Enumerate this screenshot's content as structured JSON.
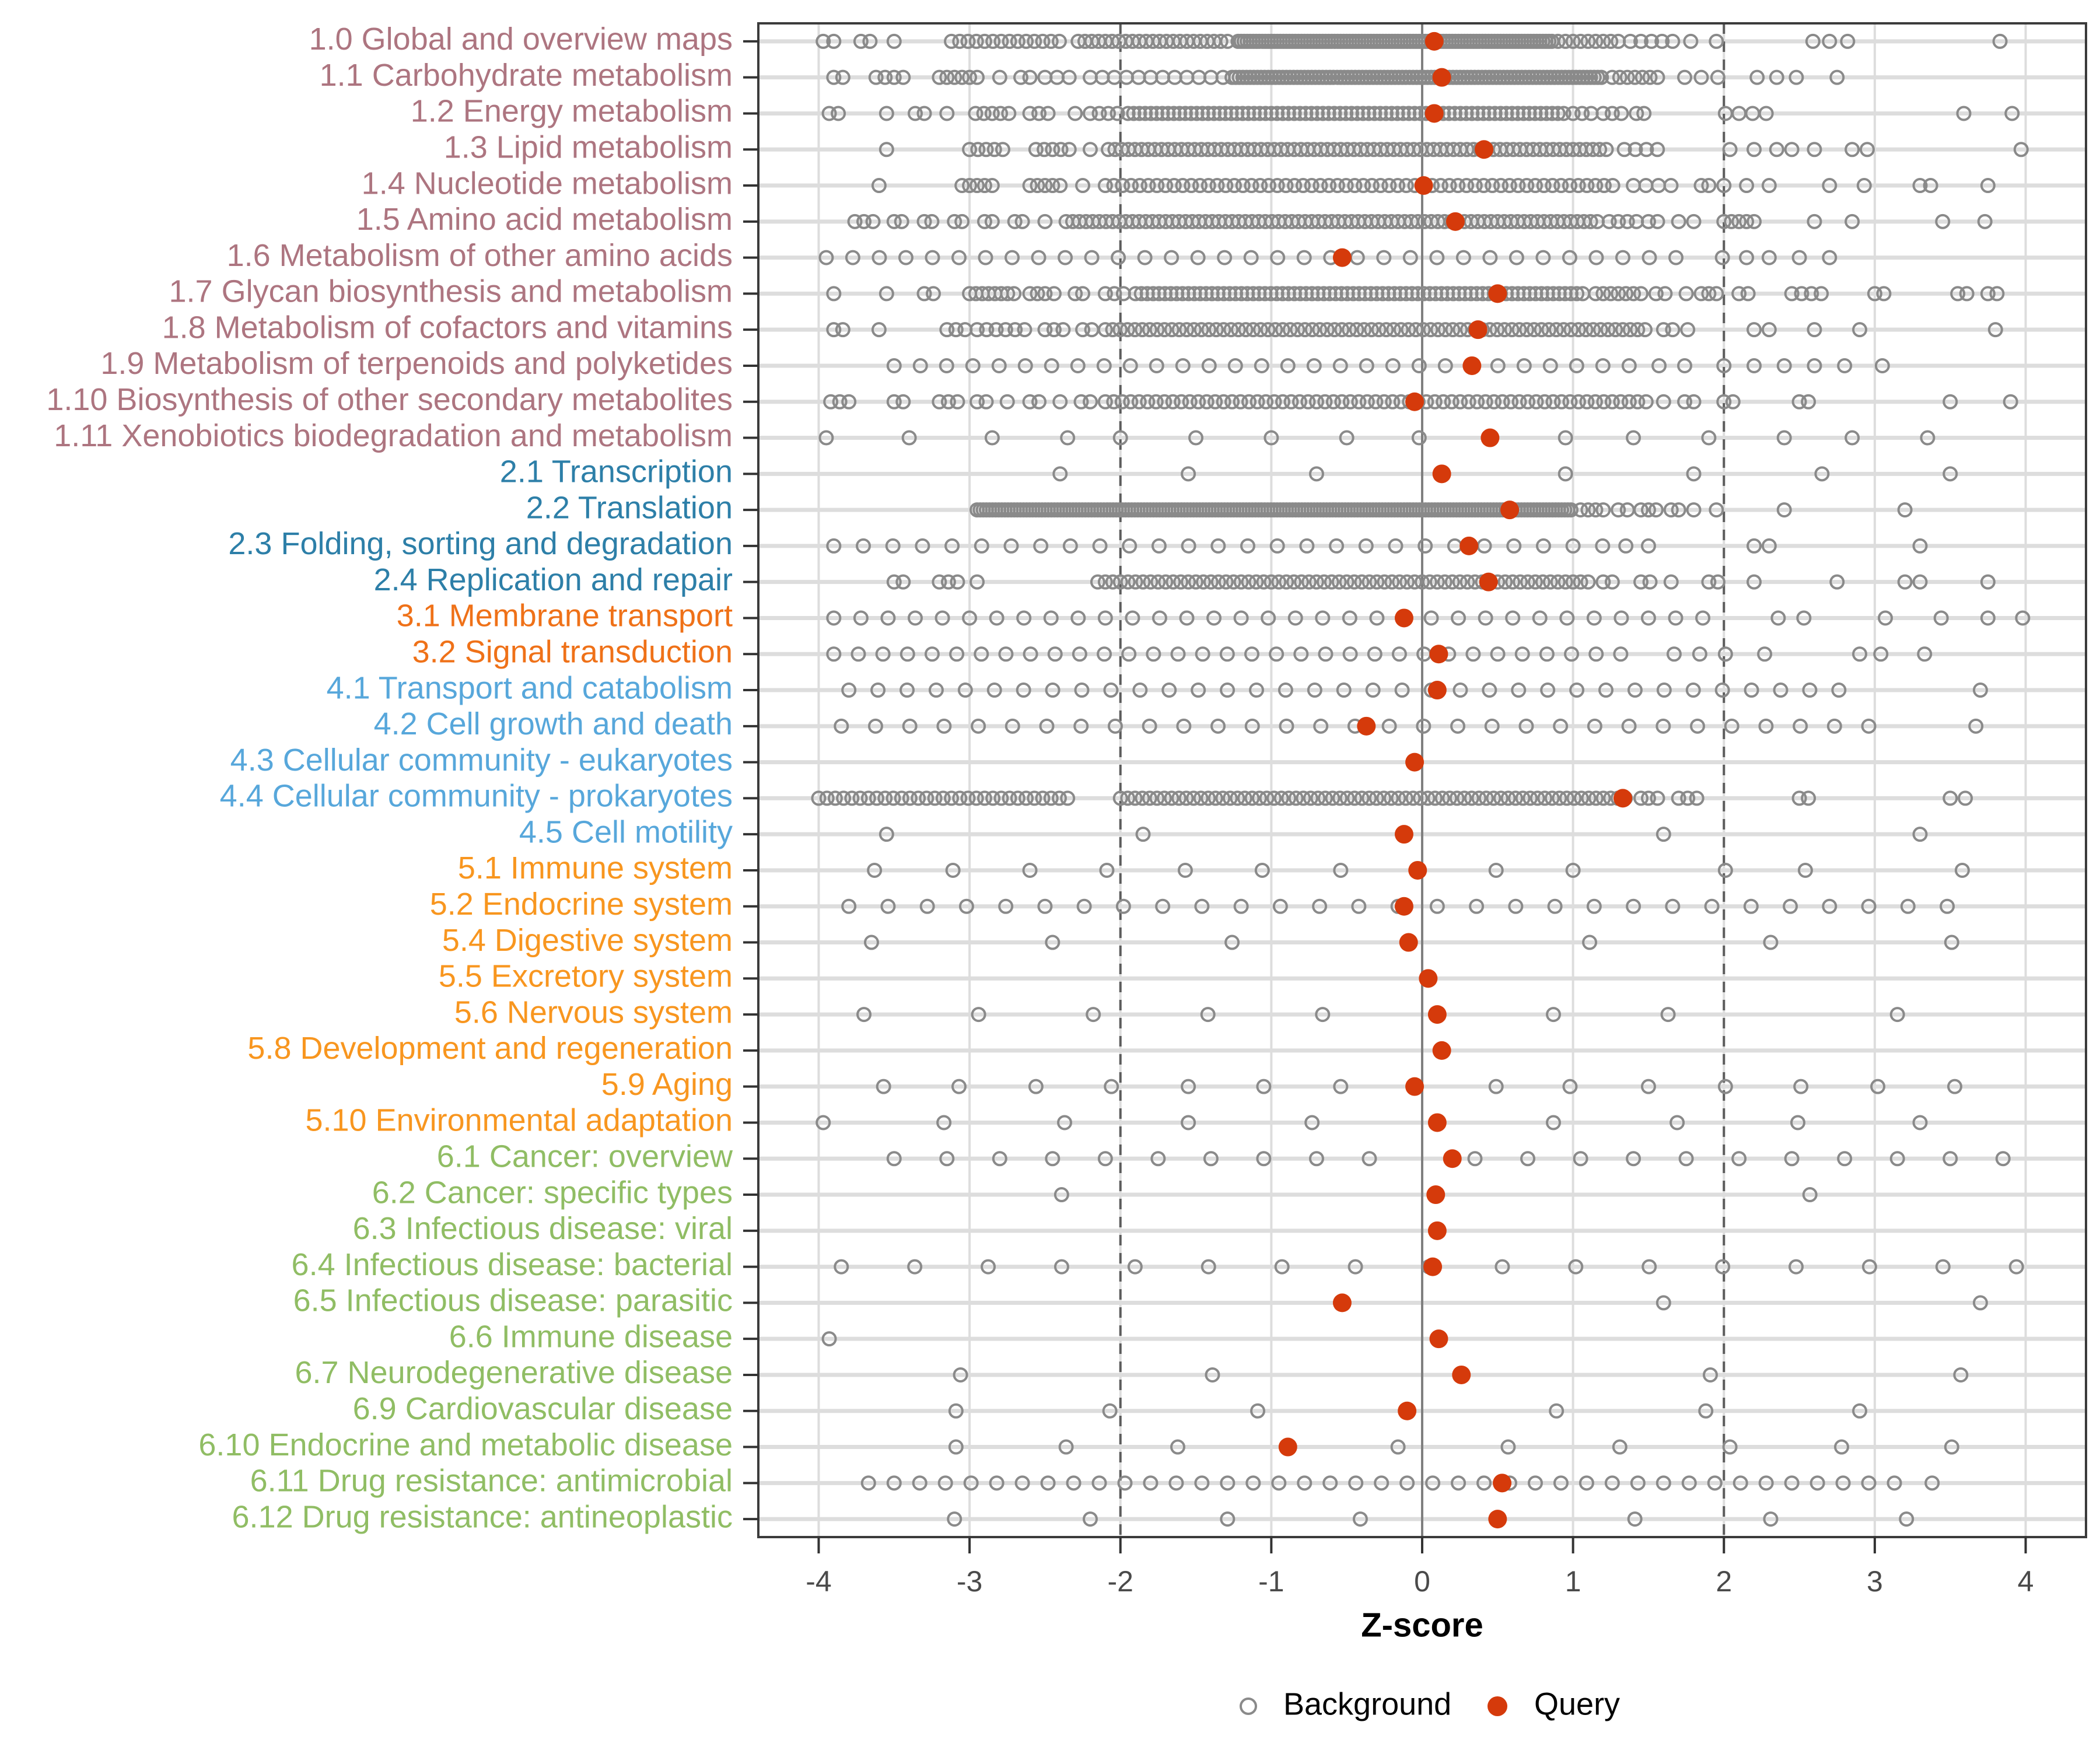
{
  "chart_data": {
    "type": "scatter",
    "title": "",
    "xlabel": "Z-score",
    "ylabel": "",
    "xlim": [
      -4.4,
      4.4
    ],
    "xticks": [
      -4,
      -3,
      -2,
      -1,
      0,
      1,
      2,
      3,
      4
    ],
    "grid": "on",
    "reference_lines": {
      "solid_at": 0,
      "dashed_at": [
        -2,
        2
      ]
    },
    "legend_position": "bottom",
    "legend": [
      {
        "label": "Background",
        "marker": "open-circle",
        "color": "#8A8A8A"
      },
      {
        "label": "Query",
        "marker": "filled-circle",
        "color": "#D53A0B"
      }
    ],
    "colors": {
      "query_dot": "#D53A0B",
      "background_circle_stroke": "#8A8A8A",
      "grid_light": "#DDDDDD",
      "zero_line": "#7F7F7F",
      "dashed_line": "#5C5C5C",
      "plot_border": "#3B3B3B",
      "tick_label": "#4A4A4A"
    },
    "group_colors": {
      "1": "#AD7580",
      "2": "#2D7FA8",
      "3": "#EF7118",
      "4": "#57A7DB",
      "5": "#F8961F",
      "6": "#90BD64"
    },
    "rows": [
      {
        "label": "1.0 Global and overview maps",
        "group": "1",
        "query": 0.08,
        "bg": [
          -3.97,
          -3.9,
          -3.72,
          -3.66,
          -3.5,
          [
            -3.12,
            -2.38,
            0.055
          ],
          [
            -2.28,
            -1.28,
            0.045
          ],
          [
            -1.22,
            0.86,
            0.02
          ],
          [
            0.9,
            1.3,
            0.05
          ],
          [
            1.38,
            1.66,
            0.07
          ],
          1.78,
          1.95,
          2.59,
          2.7,
          2.82,
          3.83
        ]
      },
      {
        "label": "1.1 Carbohydrate metabolism",
        "group": "1",
        "query": 0.13,
        "bg": [
          -3.9,
          -3.84,
          [
            -3.62,
            -3.44,
            0.06
          ],
          [
            -3.2,
            -2.94,
            0.05
          ],
          -2.8,
          -2.66,
          -2.6,
          [
            -2.5,
            -2.34,
            0.08
          ],
          [
            -2.2,
            -1.32,
            0.08
          ],
          [
            -1.26,
            1.2,
            0.024
          ],
          [
            1.26,
            1.6,
            0.05
          ],
          1.74,
          1.85,
          1.96,
          2.22,
          2.35,
          2.48,
          2.75
        ]
      },
      {
        "label": "1.2 Energy metabolism",
        "group": "1",
        "query": 0.08,
        "bg": [
          -3.93,
          -3.87,
          -3.55,
          -3.36,
          -3.3,
          -3.15,
          [
            -2.96,
            -2.74,
            0.055
          ],
          [
            -2.6,
            -2.48,
            0.06
          ],
          -2.3,
          [
            -2.2,
            -2.02,
            0.06
          ],
          [
            -1.95,
            0.95,
            0.038
          ],
          [
            1.0,
            1.12,
            0.06
          ],
          [
            1.2,
            1.32,
            0.06
          ],
          1.42,
          1.47,
          [
            2.01,
            2.28,
            0.09
          ],
          3.59,
          3.91
        ]
      },
      {
        "label": "1.3 Lipid metabolism",
        "group": "1",
        "query": 0.41,
        "bg": [
          -3.55,
          [
            -3.0,
            -2.78,
            0.055
          ],
          [
            -2.56,
            -2.34,
            0.055
          ],
          -2.2,
          [
            -2.08,
            1.26,
            0.044
          ],
          [
            1.34,
            1.56,
            0.073
          ],
          2.04,
          2.2,
          2.35,
          2.45,
          2.6,
          2.85,
          2.95,
          3.97
        ]
      },
      {
        "label": "1.4 Nucleotide metabolism",
        "group": "1",
        "query": 0.01,
        "bg": [
          -3.6,
          [
            -3.05,
            -2.85,
            0.05
          ],
          [
            -2.6,
            -2.4,
            0.05
          ],
          -2.25,
          [
            -2.1,
            1.3,
            0.057
          ],
          [
            1.4,
            1.65,
            0.083
          ],
          1.85,
          1.9,
          2.0,
          2.15,
          2.3,
          2.7,
          2.93,
          3.3,
          3.37,
          3.75
        ]
      },
      {
        "label": "1.5 Amino acid metabolism",
        "group": "1",
        "query": 0.22,
        "bg": [
          [
            -3.76,
            -3.64,
            0.06
          ],
          -3.5,
          -3.45,
          -3.3,
          -3.25,
          -3.1,
          -3.05,
          -2.9,
          -2.85,
          -2.7,
          -2.65,
          -2.5,
          [
            -2.36,
            1.16,
            0.044
          ],
          [
            1.24,
            1.42,
            0.06
          ],
          1.5,
          1.56,
          1.7,
          1.8,
          [
            2.0,
            2.2,
            0.05
          ],
          2.6,
          2.85,
          3.45,
          3.73
        ]
      },
      {
        "label": "1.6 Metabolism of other amino acids",
        "group": "1",
        "query": -0.53,
        "bg": [
          [
            -3.95,
            1.85,
            0.176
          ],
          1.99,
          2.15,
          2.3,
          2.5,
          2.7
        ]
      },
      {
        "label": "1.7 Glycan biosynthesis and metabolism",
        "group": "1",
        "query": 0.5,
        "bg": [
          -3.9,
          -3.55,
          -3.3,
          -3.24,
          [
            -3.0,
            -2.7,
            0.042
          ],
          -2.6,
          -2.55,
          -2.5,
          -2.44,
          -2.3,
          -2.25,
          [
            -2.1,
            -1.98,
            0.06
          ],
          [
            -1.9,
            1.1,
            0.039
          ],
          [
            1.15,
            1.45,
            0.05
          ],
          1.55,
          1.61,
          1.75,
          1.85,
          1.9,
          1.95,
          2.1,
          2.16,
          [
            2.45,
            2.65,
            0.065
          ],
          3.0,
          3.06,
          3.55,
          3.61,
          3.75,
          3.81
        ]
      },
      {
        "label": "1.8 Metabolism of cofactors and vitamins",
        "group": "1",
        "query": 0.37,
        "bg": [
          -3.9,
          -3.84,
          -3.6,
          [
            -3.15,
            -3.03,
            0.06
          ],
          [
            -2.95,
            -2.63,
            0.063
          ],
          [
            -2.5,
            -2.38,
            0.06
          ],
          -2.25,
          -2.19,
          [
            -2.1,
            1.5,
            0.049
          ],
          1.6,
          1.66,
          1.76,
          2.2,
          2.3,
          2.6,
          2.9,
          3.8
        ]
      },
      {
        "label": "1.9 Metabolism of terpenoids and polyketides",
        "group": "1",
        "query": 0.33,
        "bg": [
          [
            -3.5,
            1.45,
            0.174
          ],
          1.57,
          1.74,
          2.0,
          2.2,
          2.4,
          2.6,
          2.8,
          3.05
        ]
      },
      {
        "label": "1.10 Biosynthesis of other secondary metabolites",
        "group": "1",
        "query": -0.05,
        "bg": [
          -3.92,
          -3.86,
          -3.8,
          -3.5,
          -3.44,
          -3.2,
          -3.14,
          -3.08,
          -2.95,
          -2.89,
          -2.75,
          -2.6,
          -2.54,
          -2.4,
          -2.26,
          -2.2,
          [
            -2.1,
            1.5,
            0.056
          ],
          1.6,
          1.74,
          1.8,
          2.0,
          2.06,
          2.5,
          2.56,
          3.5,
          3.9
        ]
      },
      {
        "label": "1.11 Xenobiotics biodegradation and metabolism",
        "group": "1",
        "query": 0.45,
        "bg": [
          -3.95,
          -3.4,
          -2.85,
          -2.35,
          -2.0,
          -1.5,
          -1.0,
          -0.5,
          -0.02,
          0.95,
          1.4,
          1.9,
          2.4,
          2.85,
          3.35
        ]
      },
      {
        "label": "2.1 Transcription",
        "group": "2",
        "query": 0.13,
        "bg": [
          -2.4,
          -1.55,
          -0.7,
          0.95,
          1.8,
          2.65,
          3.5
        ]
      },
      {
        "label": "2.2 Translation",
        "group": "2",
        "query": 0.58,
        "bg": [
          [
            -2.95,
            1.0,
            0.0205
          ],
          [
            1.05,
            1.2,
            0.05
          ],
          1.3,
          1.36,
          1.45,
          1.5,
          1.55,
          1.65,
          1.7,
          1.8,
          1.95,
          2.4,
          3.2
        ]
      },
      {
        "label": "2.3 Folding, sorting and degradation",
        "group": "2",
        "query": 0.31,
        "bg": [
          [
            -3.9,
            1.2,
            0.196
          ],
          1.35,
          1.5,
          2.2,
          2.3,
          3.3
        ]
      },
      {
        "label": "2.4 Replication and repair",
        "group": "2",
        "query": 0.44,
        "bg": [
          -3.5,
          -3.44,
          -3.2,
          -3.14,
          -3.08,
          -2.95,
          [
            -2.15,
            1.1,
            0.05
          ],
          1.2,
          1.26,
          1.45,
          1.51,
          1.65,
          1.9,
          1.96,
          2.2,
          2.75,
          3.2,
          3.3,
          3.75
        ]
      },
      {
        "label": "3.1 Membrane transport",
        "group": "3",
        "query": -0.12,
        "bg": [
          [
            -3.9,
            1.86,
            0.18
          ],
          2.36,
          2.53,
          3.07,
          3.44,
          3.75,
          3.98
        ]
      },
      {
        "label": "3.2 Signal transduction",
        "group": "3",
        "query": 0.11,
        "bg": [
          [
            -3.9,
            1.42,
            0.163
          ],
          1.67,
          1.84,
          2.01,
          2.27,
          2.9,
          3.04,
          3.33
        ]
      },
      {
        "label": "4.1 Transport and catabolism",
        "group": "4",
        "query": 0.1,
        "bg": [
          [
            -3.8,
            2.95,
            0.193
          ],
          3.7
        ]
      },
      {
        "label": "4.2 Cell growth and death",
        "group": "4",
        "query": -0.37,
        "bg": [
          [
            -3.85,
            3.1,
            0.227
          ],
          3.67
        ]
      },
      {
        "label": "4.3 Cellular community - eukaryotes",
        "group": "4",
        "query": -0.05,
        "bg": []
      },
      {
        "label": "4.4 Cellular community - prokaryotes",
        "group": "4",
        "query": 1.33,
        "bg": [
          [
            -4.0,
            -2.35,
            0.055
          ],
          [
            -2.0,
            1.35,
            0.0485
          ],
          1.45,
          1.5,
          1.56,
          1.7,
          1.76,
          1.82,
          2.5,
          2.56,
          3.5,
          3.6
        ]
      },
      {
        "label": "4.5 Cell motility",
        "group": "4",
        "query": -0.12,
        "bg": [
          -3.55,
          -1.85,
          1.6,
          3.3
        ]
      },
      {
        "label": "5.1 Immune system",
        "group": "5",
        "query": -0.03,
        "bg": [
          -3.63,
          -3.11,
          -2.6,
          -2.09,
          -1.57,
          -1.06,
          -0.54,
          0.49,
          1.0,
          2.01,
          2.54,
          3.58
        ]
      },
      {
        "label": "5.2 Endocrine system",
        "group": "5",
        "query": -0.12,
        "bg": [
          [
            -3.8,
            3.48,
            0.26
          ]
        ]
      },
      {
        "label": "5.4 Digestive system",
        "group": "5",
        "query": -0.09,
        "bg": [
          -3.65,
          -2.45,
          -1.26,
          1.11,
          2.31,
          3.51
        ]
      },
      {
        "label": "5.5 Excretory system",
        "group": "5",
        "query": 0.04,
        "bg": []
      },
      {
        "label": "5.6 Nervous system",
        "group": "5",
        "query": 0.1,
        "bg": [
          -3.7,
          -2.94,
          -2.18,
          -1.42,
          -0.66,
          0.87,
          1.63,
          3.15
        ]
      },
      {
        "label": "5.8 Development and regeneration",
        "group": "5",
        "query": 0.13,
        "bg": []
      },
      {
        "label": "5.9 Aging",
        "group": "5",
        "query": -0.05,
        "bg": [
          -3.57,
          -3.07,
          -2.56,
          -2.06,
          -1.55,
          -1.05,
          -0.54,
          0.49,
          0.98,
          1.5,
          2.01,
          2.51,
          3.02,
          3.53
        ]
      },
      {
        "label": "5.10 Environmental adaptation",
        "group": "5",
        "query": 0.1,
        "bg": [
          -3.97,
          -3.17,
          -2.37,
          -1.55,
          -0.73,
          0.87,
          1.69,
          2.49,
          3.3
        ]
      },
      {
        "label": "6.1 Cancer: overview",
        "group": "6",
        "query": 0.2,
        "bg": [
          [
            -3.5,
            -0.35,
            0.35
          ],
          [
            0.35,
            3.85,
            0.35
          ]
        ]
      },
      {
        "label": "6.2 Cancer: specific types",
        "group": "6",
        "query": 0.09,
        "bg": [
          -2.39,
          2.57
        ]
      },
      {
        "label": "6.3 Infectious disease: viral",
        "group": "6",
        "query": 0.1,
        "bg": []
      },
      {
        "label": "6.4 Infectious disease: bacterial",
        "group": "6",
        "query": 0.07,
        "bg": [
          [
            -3.85,
            3.94,
            0.4868
          ]
        ]
      },
      {
        "label": "6.5 Infectious disease: parasitic",
        "group": "6",
        "query": -0.53,
        "bg": [
          1.6,
          3.7
        ]
      },
      {
        "label": "6.6 Immune disease",
        "group": "6",
        "query": 0.11,
        "bg": [
          -3.93
        ]
      },
      {
        "label": "6.7 Neurodegenerative disease",
        "group": "6",
        "query": 0.26,
        "bg": [
          -3.06,
          -1.39,
          1.91,
          3.57
        ]
      },
      {
        "label": "6.9 Cardiovascular disease",
        "group": "6",
        "query": -0.1,
        "bg": [
          -3.09,
          -2.07,
          -1.09,
          0.89,
          1.88,
          2.9
        ]
      },
      {
        "label": "6.10 Endocrine and metabolic disease",
        "group": "6",
        "query": -0.89,
        "bg": [
          -3.09,
          -2.36,
          -1.62,
          -0.16,
          0.57,
          1.31,
          2.04,
          2.78,
          3.51
        ]
      },
      {
        "label": "6.11 Drug resistance: antimicrobial",
        "group": "6",
        "query": 0.53,
        "bg": [
          [
            -3.67,
            3.13,
            0.17
          ],
          3.38
        ]
      },
      {
        "label": "6.12 Drug resistance: antineoplastic",
        "group": "6",
        "query": 0.5,
        "bg": [
          -3.1,
          -2.2,
          -1.29,
          -0.41,
          1.41,
          2.31,
          3.21
        ]
      }
    ]
  }
}
